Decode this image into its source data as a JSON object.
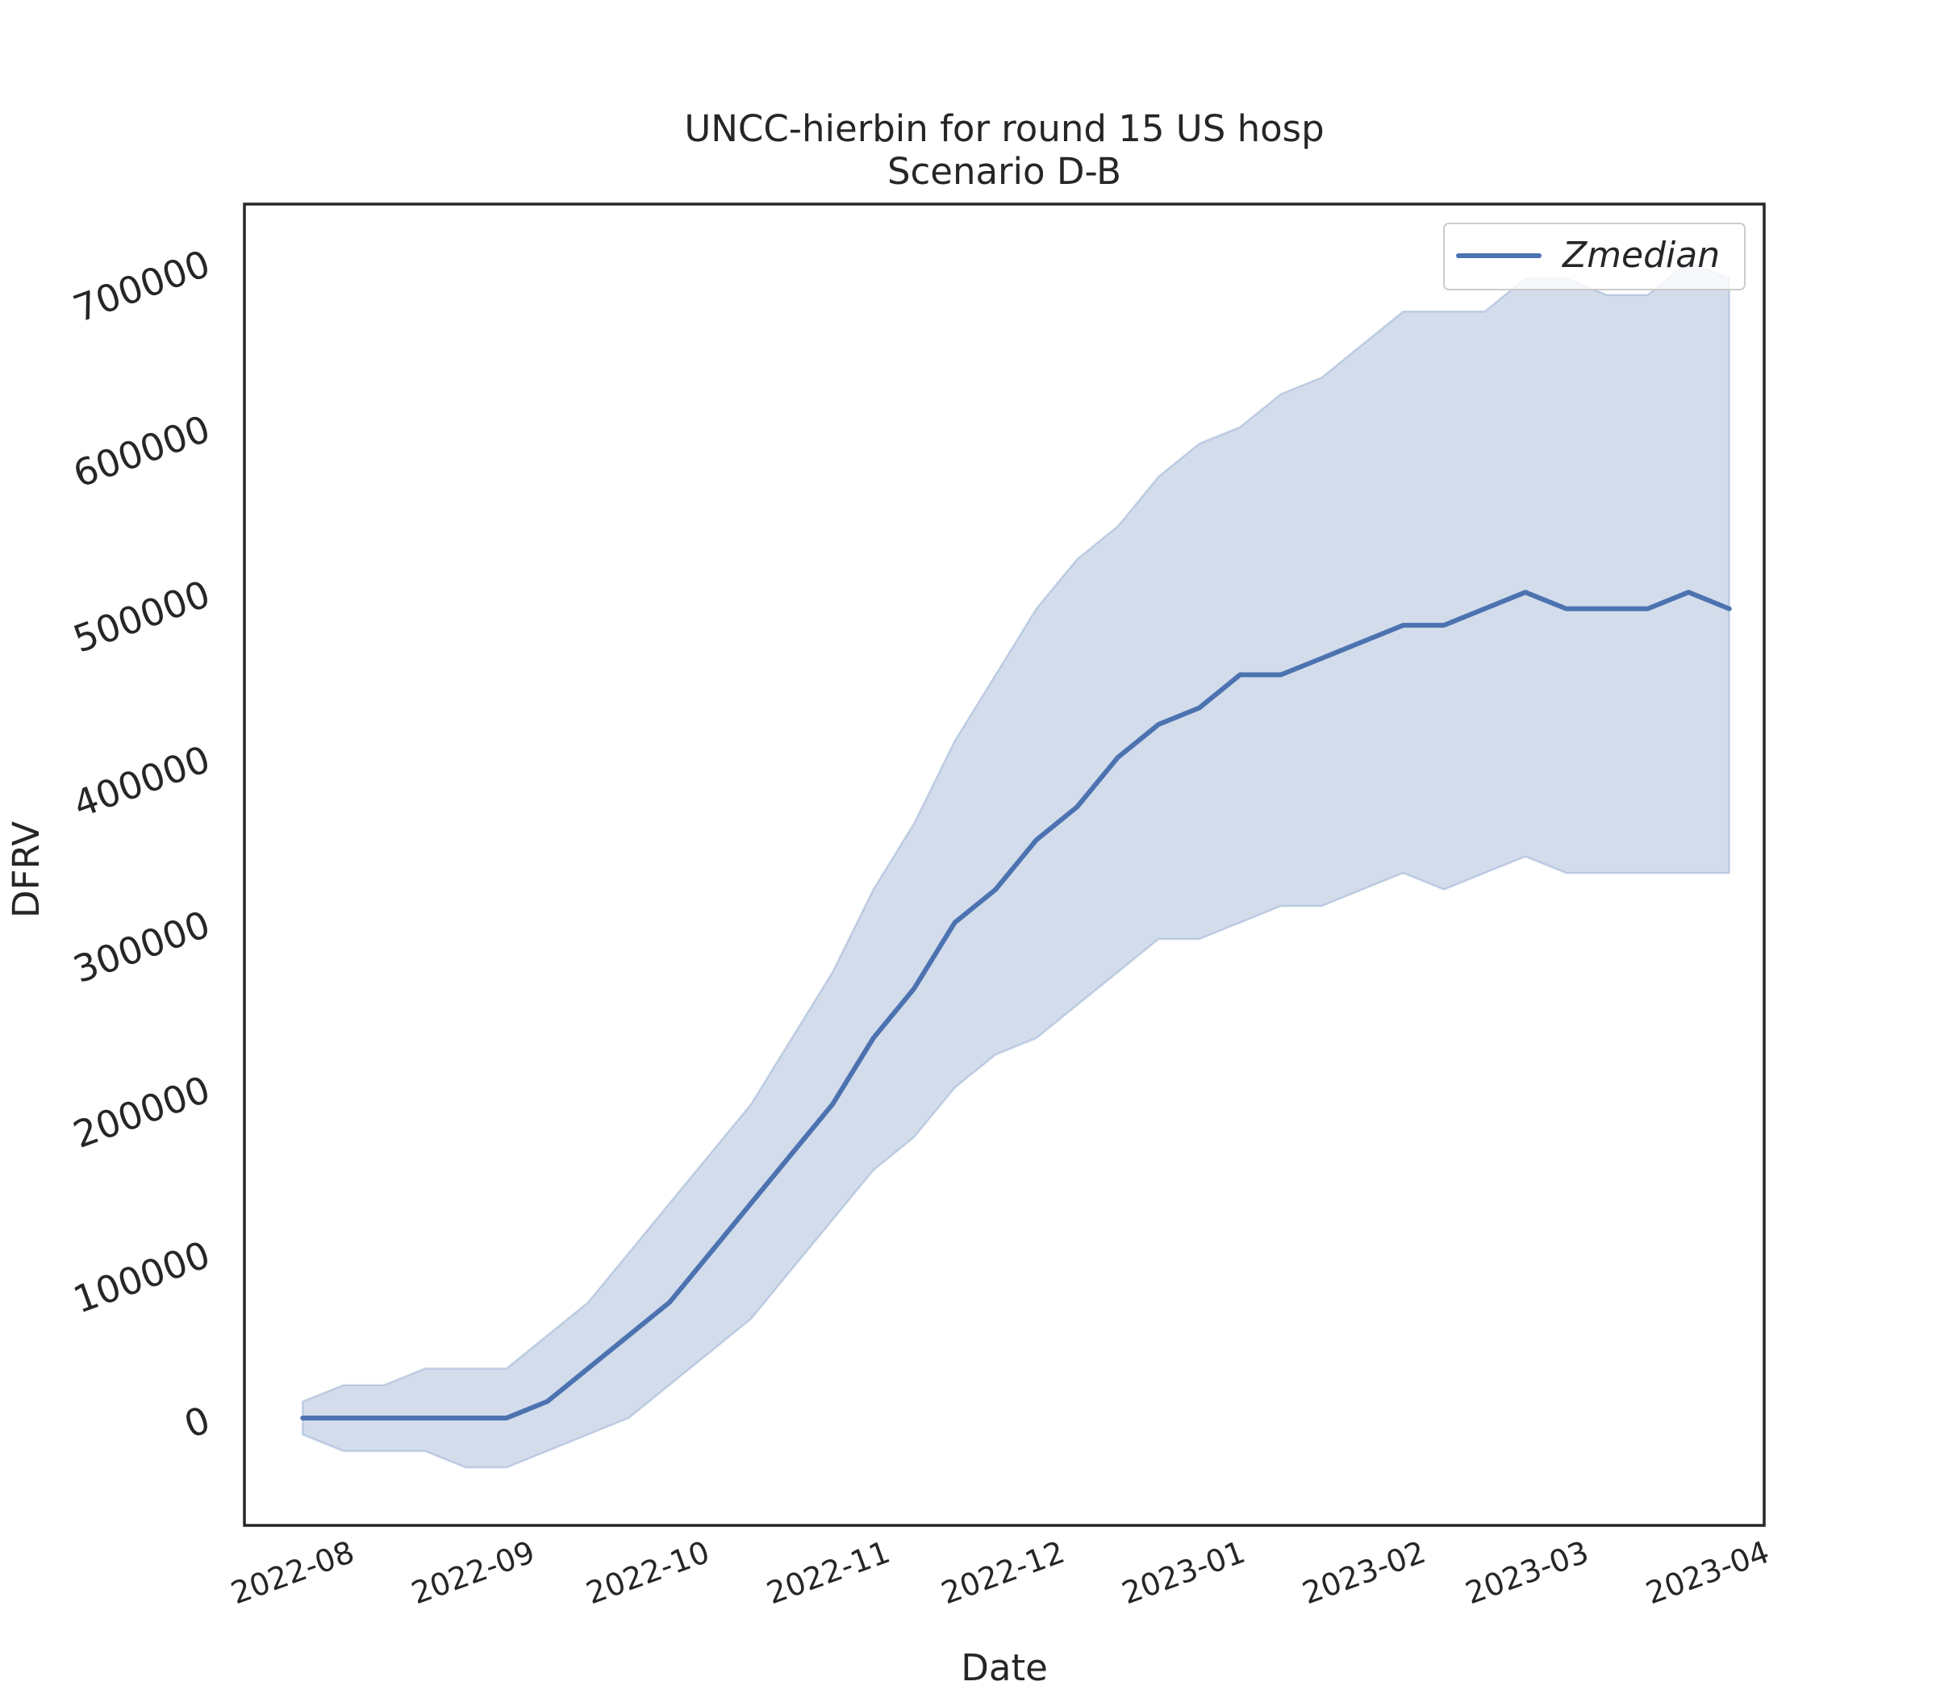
{
  "chart_data": {
    "type": "line",
    "title": "UNCC-hierbin for round 15 US hosp",
    "subtitle": "Scenario D-B",
    "xlabel": "Date",
    "ylabel": "DFRV",
    "ylim": [
      -65000,
      735000
    ],
    "xlim": [
      "2022-07-14",
      "2023-04-01"
    ],
    "y_ticks": [
      "0",
      "100000",
      "200000",
      "300000",
      "400000",
      "500000",
      "600000",
      "700000"
    ],
    "x_ticks": [
      "2022-08",
      "2022-09",
      "2022-10",
      "2022-11",
      "2022-12",
      "2023-01",
      "2023-02",
      "2023-03",
      "2023-04"
    ],
    "grid": false,
    "legend": {
      "position": "top-right",
      "entries": [
        "Zmedian"
      ]
    },
    "series": [
      {
        "name": "Zmedian",
        "color": "#4c72b0",
        "band_color": "#4c72b0",
        "band_opacity": 0.25,
        "x": [
          "2022-07-24",
          "2022-07-31",
          "2022-08-07",
          "2022-08-14",
          "2022-08-21",
          "2022-08-28",
          "2022-09-04",
          "2022-09-11",
          "2022-09-18",
          "2022-09-25",
          "2022-10-02",
          "2022-10-09",
          "2022-10-16",
          "2022-10-23",
          "2022-10-30",
          "2022-11-06",
          "2022-11-13",
          "2022-11-20",
          "2022-11-27",
          "2022-12-04",
          "2022-12-11",
          "2022-12-18",
          "2022-12-25",
          "2023-01-01",
          "2023-01-08",
          "2023-01-15",
          "2023-01-22",
          "2023-01-29",
          "2023-02-05",
          "2023-02-12",
          "2023-02-19",
          "2023-02-26",
          "2023-03-05",
          "2023-03-12",
          "2023-03-19",
          "2023-03-26"
        ],
        "values": [
          0,
          0,
          0,
          0,
          0,
          0,
          10000,
          30000,
          50000,
          70000,
          100000,
          130000,
          160000,
          190000,
          230000,
          260000,
          300000,
          320000,
          350000,
          370000,
          400000,
          420000,
          430000,
          450000,
          450000,
          460000,
          470000,
          480000,
          480000,
          490000,
          500000,
          490000,
          490000,
          490000,
          500000,
          490000
        ],
        "lower": [
          -10000,
          -20000,
          -20000,
          -20000,
          -30000,
          -30000,
          -20000,
          -10000,
          0,
          20000,
          40000,
          60000,
          90000,
          120000,
          150000,
          170000,
          200000,
          220000,
          230000,
          250000,
          270000,
          290000,
          290000,
          300000,
          310000,
          310000,
          320000,
          330000,
          320000,
          330000,
          340000,
          330000,
          330000,
          330000,
          330000,
          330000
        ],
        "upper": [
          10000,
          20000,
          20000,
          30000,
          30000,
          30000,
          50000,
          70000,
          100000,
          130000,
          160000,
          190000,
          230000,
          270000,
          320000,
          360000,
          410000,
          450000,
          490000,
          520000,
          540000,
          570000,
          590000,
          600000,
          620000,
          630000,
          650000,
          670000,
          670000,
          670000,
          690000,
          690000,
          680000,
          680000,
          700000,
          690000
        ]
      }
    ]
  }
}
